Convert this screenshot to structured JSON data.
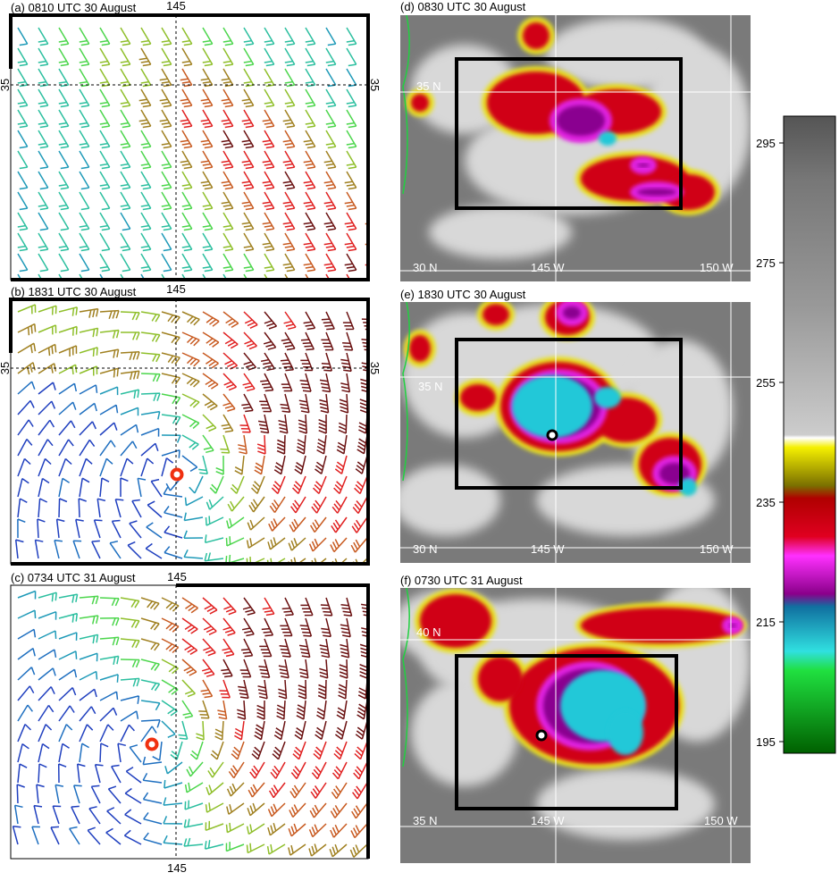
{
  "panels": [
    {
      "label": "(a) 0810 UTC 30 August",
      "top_tick": "145",
      "left_tick": "35",
      "right_tick": "35"
    },
    {
      "label": "(b) 1831 UTC 30 August",
      "top_tick": "145",
      "left_tick": "35",
      "right_tick": "35"
    },
    {
      "label": "(c) 0734 UTC 31 August",
      "top_tick": "145",
      "bottom_tick": "145"
    }
  ],
  "images": [
    {
      "label": "(d) 0830 UTC 30 August",
      "lat_top": "35 N",
      "lat_bottom": "30 N",
      "lon_left": "145 W",
      "lon_right": "150 W"
    },
    {
      "label": "(e) 1830 UTC 30 August",
      "lat_top": "35 N",
      "lat_bottom": "30 N",
      "lon_left": "145 W",
      "lon_right": "150 W"
    },
    {
      "label": "(f) 0730 UTC 31 August",
      "lat_top": "40 N",
      "lat_bottom": "35 N",
      "lon_left": "145 W",
      "lon_right": "150 W"
    }
  ],
  "colorbar": {
    "ticks": [
      295,
      275,
      255,
      235,
      215,
      195
    ]
  }
}
